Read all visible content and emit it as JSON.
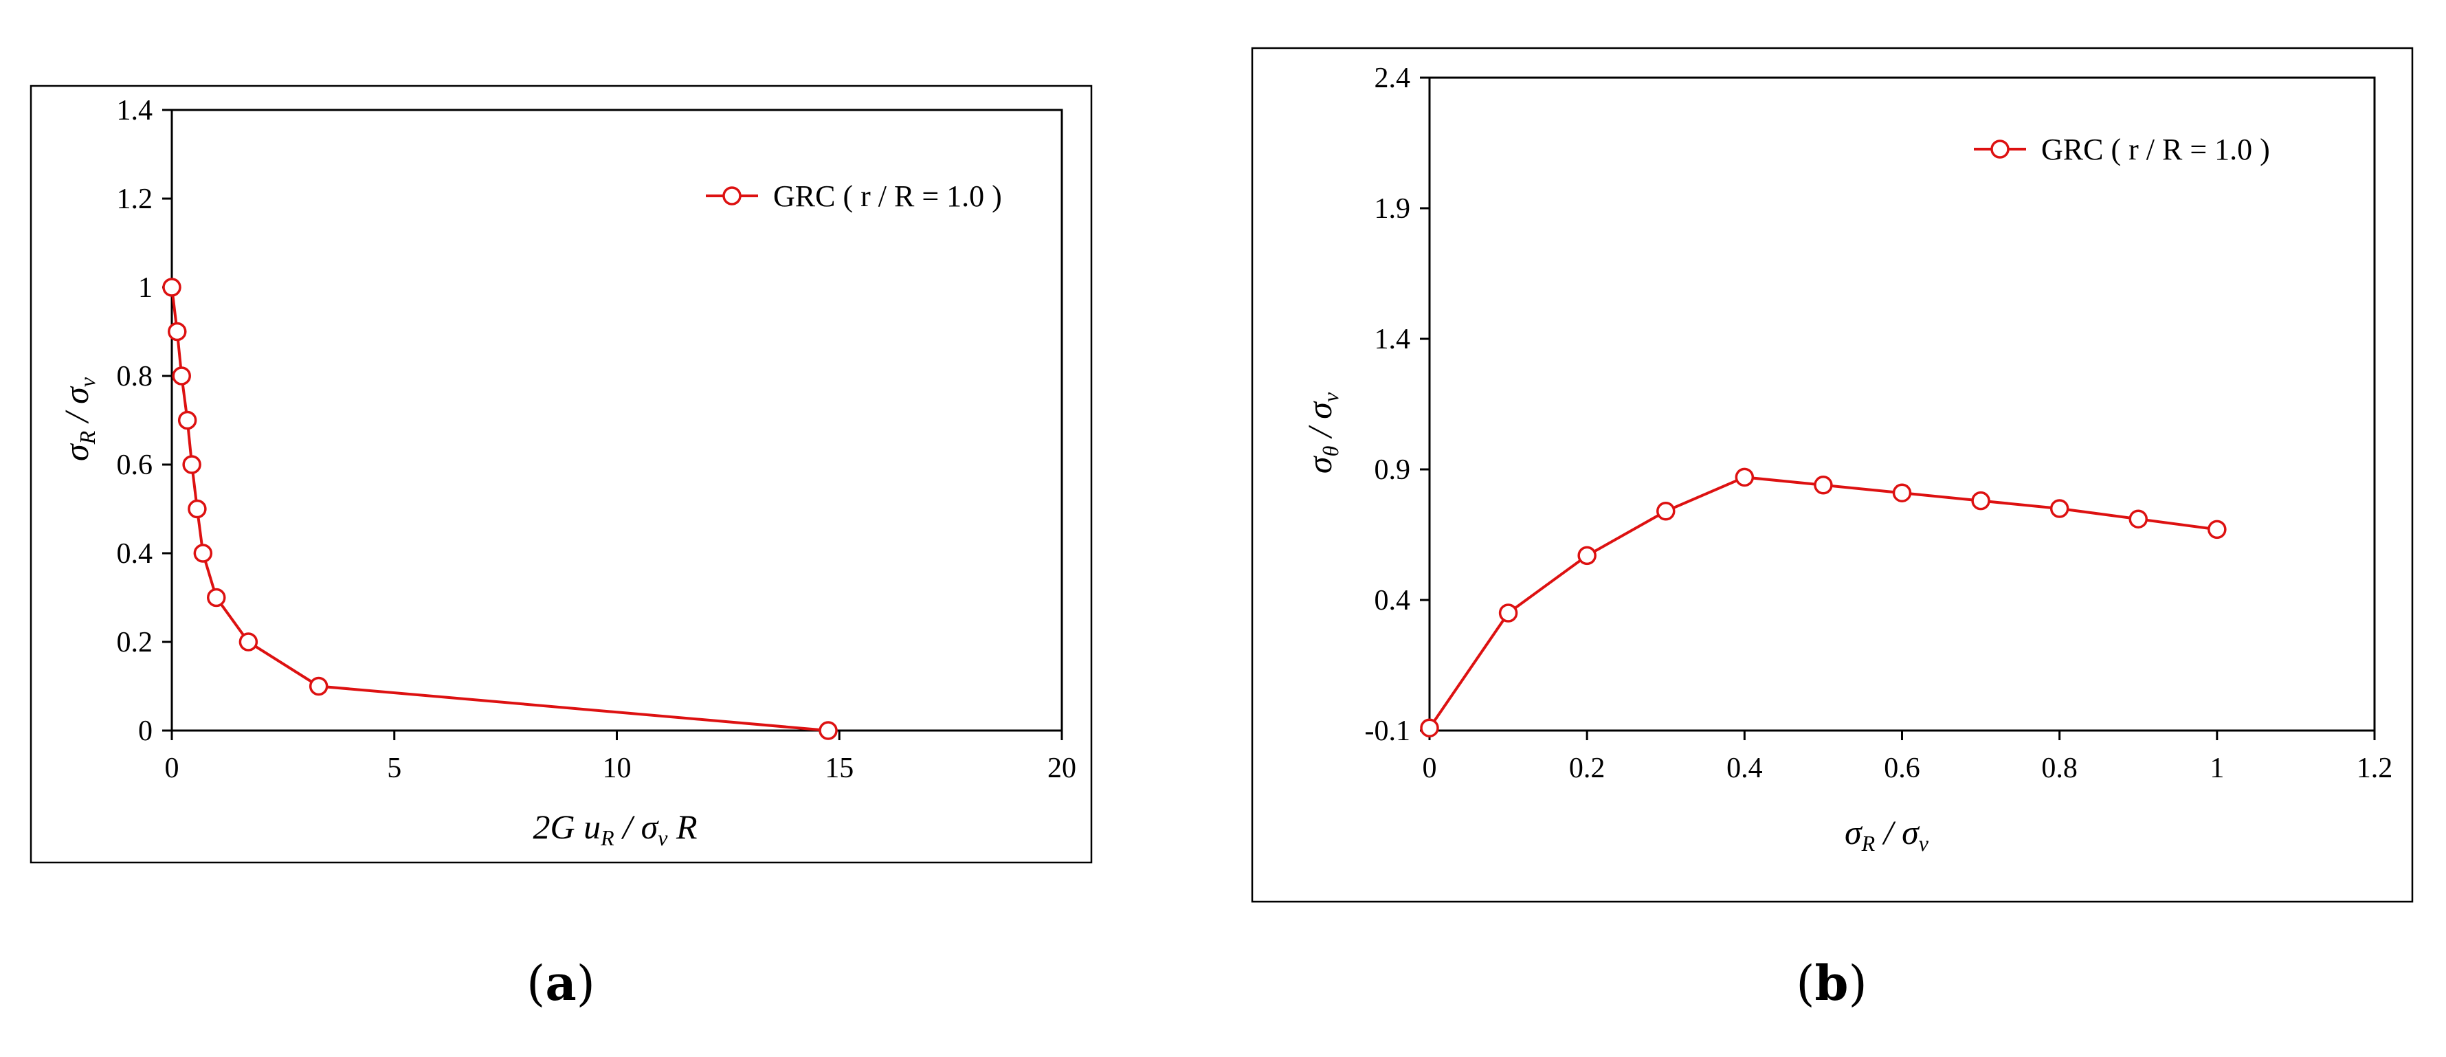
{
  "panels": {
    "a": {
      "label_letter": "a"
    },
    "b": {
      "label_letter": "b"
    }
  },
  "chart_data": [
    {
      "type": "line",
      "panel": "a",
      "xlim": [
        0,
        20
      ],
      "ylim": [
        0,
        1.4
      ],
      "xticks": [
        0,
        5,
        10,
        15,
        20
      ],
      "yticks": [
        0,
        0.2,
        0.4,
        0.6,
        0.8,
        1,
        1.2,
        1.4
      ],
      "xtick_labels": [
        "0",
        "5",
        "10",
        "15",
        "20"
      ],
      "ytick_labels": [
        "0",
        "0.2",
        "0.4",
        "0.6",
        "0.8",
        "1",
        "1.2",
        "1.4"
      ],
      "xlabel": {
        "main": "2G u",
        "sub": "R",
        "rest": " / σ",
        "sub2": "v",
        "tail": " R"
      },
      "ylabel": {
        "main": "σ",
        "sub": "R",
        "rest": " / σ",
        "sub2": "v"
      },
      "legend": "top-right",
      "grid": false,
      "color": "#dd1111",
      "series": [
        {
          "name": "GRC ( r / R = 1.0 )",
          "marker": "open-circle",
          "x": [
            0,
            0.12,
            0.22,
            0.35,
            0.45,
            0.57,
            0.7,
            1.0,
            1.72,
            3.3,
            14.75
          ],
          "y": [
            1.0,
            0.9,
            0.8,
            0.7,
            0.6,
            0.5,
            0.4,
            0.3,
            0.2,
            0.1,
            0.0
          ]
        }
      ]
    },
    {
      "type": "line",
      "panel": "b",
      "xlim": [
        0,
        1.2
      ],
      "ylim": [
        -0.1,
        2.4
      ],
      "xticks": [
        0,
        0.2,
        0.4,
        0.6,
        0.8,
        1,
        1.2
      ],
      "yticks": [
        -0.1,
        0.4,
        0.9,
        1.4,
        1.9,
        2.4
      ],
      "xtick_labels": [
        "0",
        "0.2",
        "0.4",
        "0.6",
        "0.8",
        "1",
        "1.2"
      ],
      "ytick_labels": [
        "-0.1",
        "0.4",
        "0.9",
        "1.4",
        "1.9",
        "2.4"
      ],
      "xlabel": {
        "main": "σ",
        "sub": "R",
        "rest": "  / σ",
        "sub2": "v"
      },
      "ylabel": {
        "main": "σ",
        "sub": "θ",
        "rest": "  / σ",
        "sub2": "v"
      },
      "legend": "top-right",
      "grid": false,
      "color": "#dd1111",
      "series": [
        {
          "name": "GRC ( r / R = 1.0 )",
          "marker": "open-circle",
          "x": [
            0,
            0.1,
            0.2,
            0.3,
            0.4,
            0.5,
            0.6,
            0.7,
            0.8,
            0.9,
            1.0
          ],
          "y": [
            -0.09,
            0.35,
            0.57,
            0.74,
            0.87,
            0.84,
            0.81,
            0.78,
            0.75,
            0.71,
            0.67
          ]
        }
      ]
    }
  ]
}
